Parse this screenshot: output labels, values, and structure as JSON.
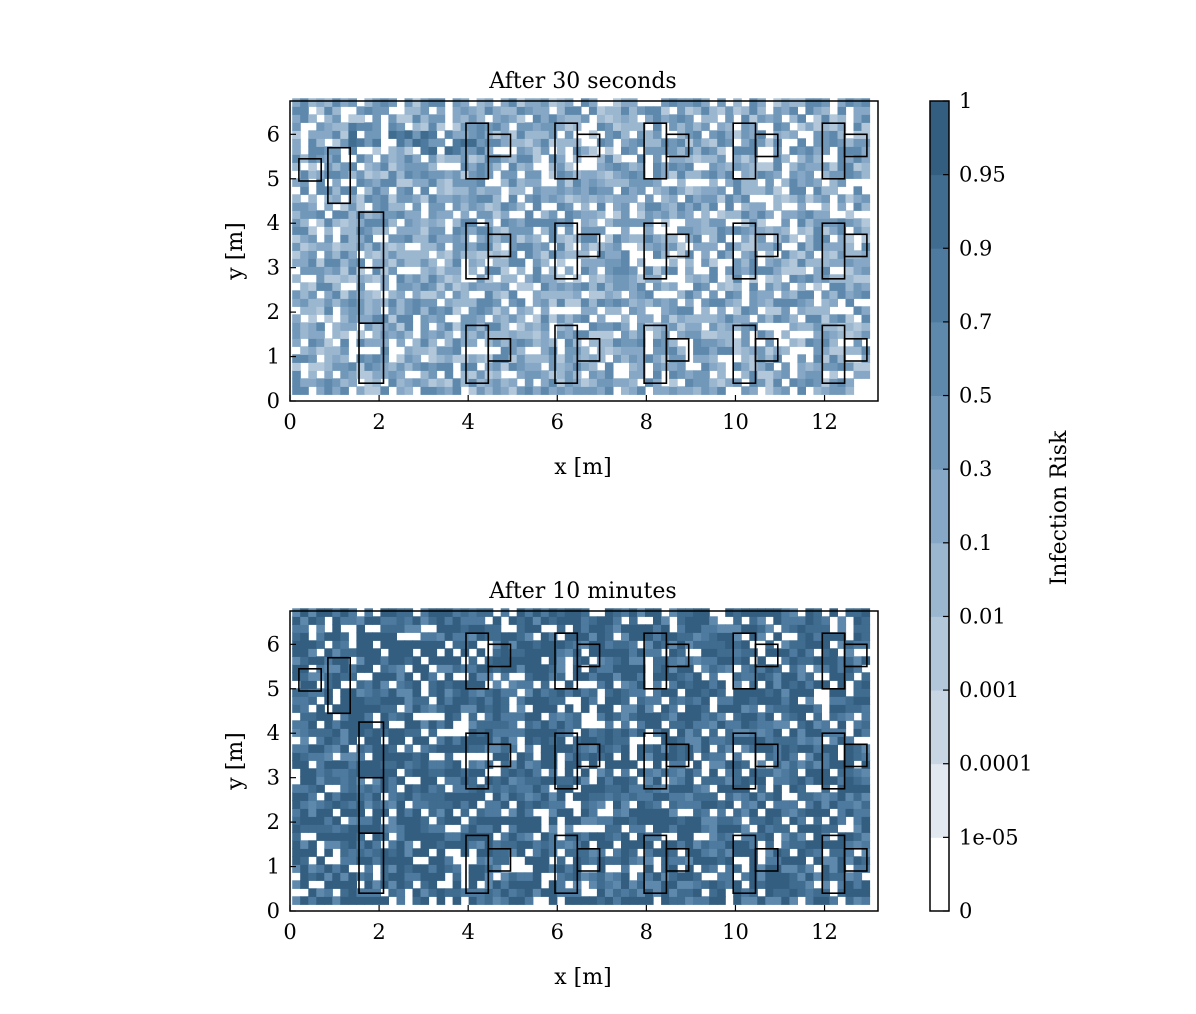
{
  "chart_data": [
    {
      "type": "heatmap",
      "title": "After 30 seconds",
      "xlabel": "x [m]",
      "ylabel": "y [m]",
      "xlim": [
        0,
        13.2
      ],
      "ylim": [
        0,
        6.75
      ],
      "xticks": [
        "0",
        "2",
        "4",
        "6",
        "8",
        "10",
        "12"
      ],
      "yticks": [
        "0",
        "1",
        "2",
        "3",
        "4",
        "5",
        "6"
      ],
      "grid": false,
      "seed": 7,
      "coverage": 0.78,
      "intensity": 0.35,
      "obstacles": [
        {
          "x": 0.2,
          "y": 4.95,
          "w": 0.5,
          "h": 0.5
        },
        {
          "x": 0.85,
          "y": 4.45,
          "w": 0.5,
          "h": 1.25
        },
        {
          "x": 1.55,
          "y": 0.4,
          "w": 0.55,
          "h": 3.85
        },
        {
          "x": 3.95,
          "y": 5.0,
          "w": 0.5,
          "h": 1.25
        },
        {
          "x": 4.45,
          "y": 5.5,
          "w": 0.5,
          "h": 0.5
        },
        {
          "x": 5.95,
          "y": 5.0,
          "w": 0.5,
          "h": 1.25
        },
        {
          "x": 6.45,
          "y": 5.5,
          "w": 0.5,
          "h": 0.5
        },
        {
          "x": 7.95,
          "y": 5.0,
          "w": 0.5,
          "h": 1.25
        },
        {
          "x": 8.45,
          "y": 5.5,
          "w": 0.5,
          "h": 0.5
        },
        {
          "x": 9.95,
          "y": 5.0,
          "w": 0.5,
          "h": 1.25
        },
        {
          "x": 10.45,
          "y": 5.5,
          "w": 0.5,
          "h": 0.5
        },
        {
          "x": 11.95,
          "y": 5.0,
          "w": 0.5,
          "h": 1.25
        },
        {
          "x": 12.45,
          "y": 5.5,
          "w": 0.5,
          "h": 0.5
        },
        {
          "x": 3.95,
          "y": 2.75,
          "w": 0.5,
          "h": 1.25
        },
        {
          "x": 4.45,
          "y": 3.25,
          "w": 0.5,
          "h": 0.5
        },
        {
          "x": 5.95,
          "y": 2.75,
          "w": 0.5,
          "h": 1.25
        },
        {
          "x": 6.45,
          "y": 3.25,
          "w": 0.5,
          "h": 0.5
        },
        {
          "x": 7.95,
          "y": 2.75,
          "w": 0.5,
          "h": 1.25
        },
        {
          "x": 8.45,
          "y": 3.25,
          "w": 0.5,
          "h": 0.5
        },
        {
          "x": 9.95,
          "y": 2.75,
          "w": 0.5,
          "h": 1.25
        },
        {
          "x": 10.45,
          "y": 3.25,
          "w": 0.5,
          "h": 0.5
        },
        {
          "x": 11.95,
          "y": 2.75,
          "w": 0.5,
          "h": 1.25
        },
        {
          "x": 12.45,
          "y": 3.25,
          "w": 0.5,
          "h": 0.5
        },
        {
          "x": 3.95,
          "y": 0.4,
          "w": 0.5,
          "h": 1.3
        },
        {
          "x": 4.45,
          "y": 0.9,
          "w": 0.5,
          "h": 0.5
        },
        {
          "x": 5.95,
          "y": 0.4,
          "w": 0.5,
          "h": 1.3
        },
        {
          "x": 6.45,
          "y": 0.9,
          "w": 0.5,
          "h": 0.5
        },
        {
          "x": 7.95,
          "y": 0.4,
          "w": 0.5,
          "h": 1.3
        },
        {
          "x": 8.45,
          "y": 0.9,
          "w": 0.5,
          "h": 0.5
        },
        {
          "x": 9.95,
          "y": 0.4,
          "w": 0.5,
          "h": 1.3
        },
        {
          "x": 10.45,
          "y": 0.9,
          "w": 0.5,
          "h": 0.5
        },
        {
          "x": 11.95,
          "y": 0.4,
          "w": 0.5,
          "h": 1.3
        },
        {
          "x": 12.45,
          "y": 0.9,
          "w": 0.5,
          "h": 0.5
        }
      ]
    },
    {
      "type": "heatmap",
      "title": "After 10 minutes",
      "xlabel": "x [m]",
      "ylabel": "y [m]",
      "xlim": [
        0,
        13.2
      ],
      "ylim": [
        0,
        6.75
      ],
      "xticks": [
        "0",
        "2",
        "4",
        "6",
        "8",
        "10",
        "12"
      ],
      "yticks": [
        "0",
        "1",
        "2",
        "3",
        "4",
        "5",
        "6"
      ],
      "grid": false,
      "seed": 19,
      "coverage": 0.8,
      "intensity": 0.92,
      "obstacles": "same"
    }
  ],
  "colorbar": {
    "label": "Infection Risk",
    "ticks": [
      "0",
      "1e-05",
      "0.0001",
      "0.001",
      "0.01",
      "0.1",
      "0.3",
      "0.5",
      "0.7",
      "0.9",
      "0.95",
      "1"
    ],
    "colors": [
      "#ffffff",
      "#e1e8f0",
      "#c8d6e4",
      "#b2c7da",
      "#9bb7d0",
      "#86a7c5",
      "#7198b9",
      "#5e89ac",
      "#4d7a9e",
      "#3f6c8f",
      "#345e80"
    ]
  }
}
